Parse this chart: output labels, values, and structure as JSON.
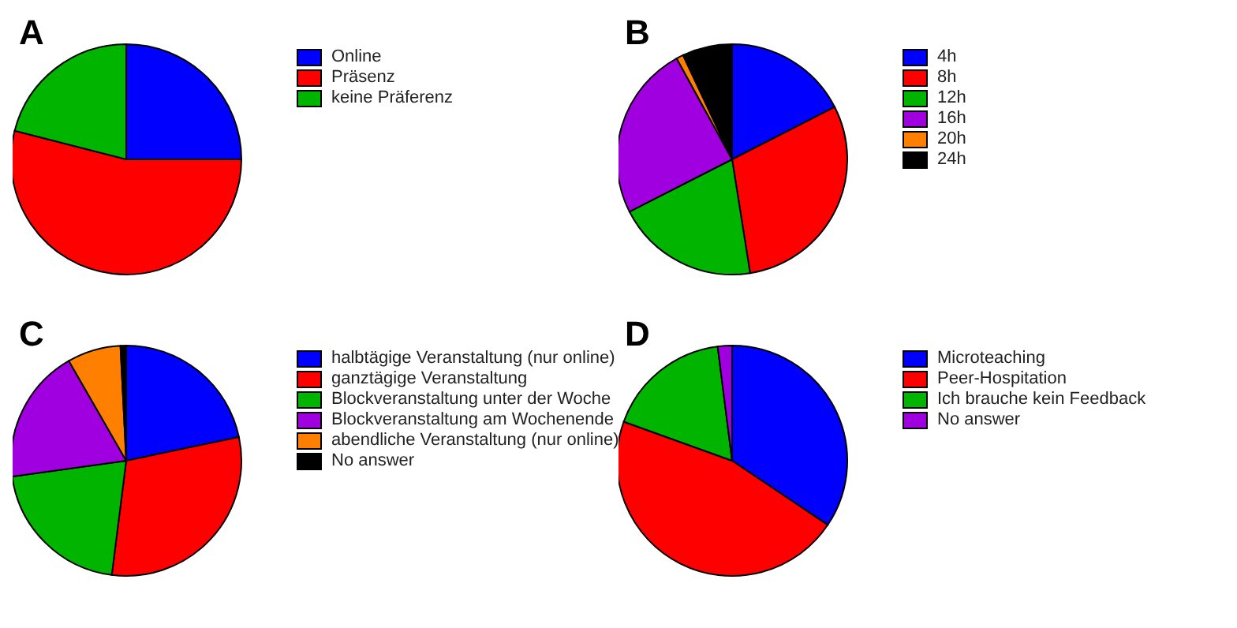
{
  "chart_data": [
    {
      "type": "pie",
      "title": "A",
      "categories": [
        "Online",
        "Präsenz",
        "keine Präferenz"
      ],
      "values": [
        25,
        54,
        21
      ],
      "colors": [
        "#0000ff",
        "#ff0000",
        "#00b400"
      ],
      "legend": "right"
    },
    {
      "type": "pie",
      "title": "B",
      "categories": [
        "4h",
        "8h",
        "12h",
        "16h",
        "20h",
        "24h"
      ],
      "values": [
        17.5,
        30,
        20,
        24.5,
        1,
        7
      ],
      "colors": [
        "#0000ff",
        "#ff0000",
        "#00b400",
        "#a000e0",
        "#ff8000",
        "#000000"
      ],
      "legend": "right"
    },
    {
      "type": "pie",
      "title": "C",
      "categories": [
        "halbtägige Veranstaltung (nur online)",
        "ganztägige Veranstaltung",
        "Blockveranstaltung unter der Woche",
        "Blockveranstaltung am Wochenende",
        "abendliche Veranstaltung (nur online)",
        "No answer"
      ],
      "values": [
        21.7,
        30.3,
        20.8,
        18.9,
        7.5,
        0.8
      ],
      "colors": [
        "#0000ff",
        "#ff0000",
        "#00b400",
        "#a000e0",
        "#ff8000",
        "#000000"
      ],
      "legend": "right"
    },
    {
      "type": "pie",
      "title": "D",
      "categories": [
        "Microteaching",
        "Peer-Hospitation",
        "Ich brauche kein Feedback",
        "No answer"
      ],
      "values": [
        34.4,
        46.1,
        17.5,
        2
      ],
      "colors": [
        "#0000ff",
        "#ff0000",
        "#00b400",
        "#a000e0"
      ],
      "legend": "right"
    }
  ]
}
